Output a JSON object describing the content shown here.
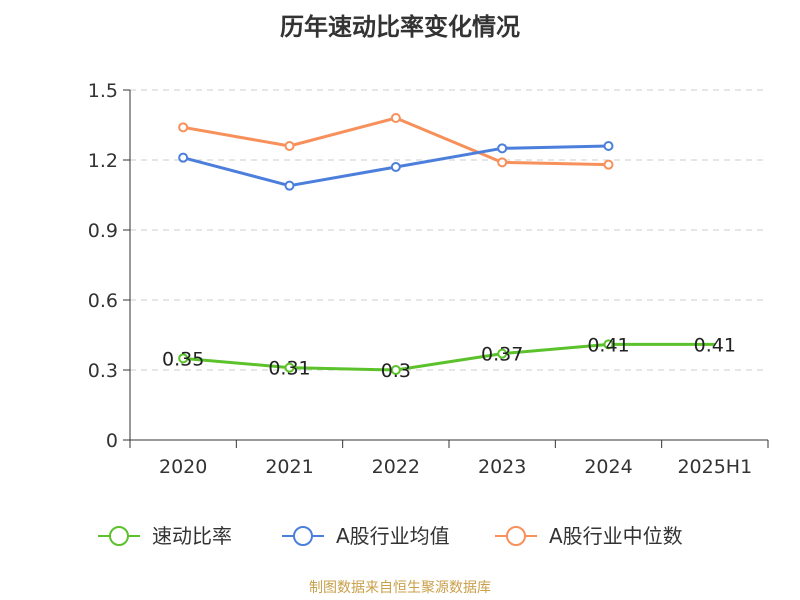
{
  "chart_data": {
    "type": "line",
    "title": "历年速动比率变化情况",
    "categories": [
      "2020",
      "2021",
      "2022",
      "2023",
      "2024",
      "2025H1"
    ],
    "ylim": [
      0,
      1.5
    ],
    "yticks": [
      0,
      0.3,
      0.6,
      0.9,
      1.2,
      1.5
    ],
    "ytick_labels": [
      "0",
      "0.3",
      "0.6",
      "0.9",
      "1.2",
      "1.5"
    ],
    "grid": true,
    "legend_position": "bottom",
    "series": [
      {
        "name": "速动比率",
        "color": "#5cc22b",
        "values": [
          0.35,
          0.31,
          0.3,
          0.37,
          0.41,
          0.41
        ],
        "labels": [
          "0.35",
          "0.31",
          "0.3",
          "0.37",
          "0.41",
          "0.41"
        ],
        "show_labels": true,
        "markers": [
          true,
          true,
          true,
          true,
          true,
          false
        ]
      },
      {
        "name": "A股行业均值",
        "color": "#4c7fdc",
        "values": [
          1.21,
          1.09,
          1.17,
          1.25,
          1.26,
          null
        ],
        "show_labels": false,
        "markers": [
          true,
          true,
          true,
          true,
          true,
          false
        ]
      },
      {
        "name": "A股行业中位数",
        "color": "#f7905a",
        "values": [
          1.34,
          1.26,
          1.38,
          1.19,
          1.18,
          null
        ],
        "show_labels": false,
        "markers": [
          true,
          true,
          true,
          true,
          true,
          false
        ]
      }
    ]
  },
  "source": "制图数据来自恒生聚源数据库"
}
